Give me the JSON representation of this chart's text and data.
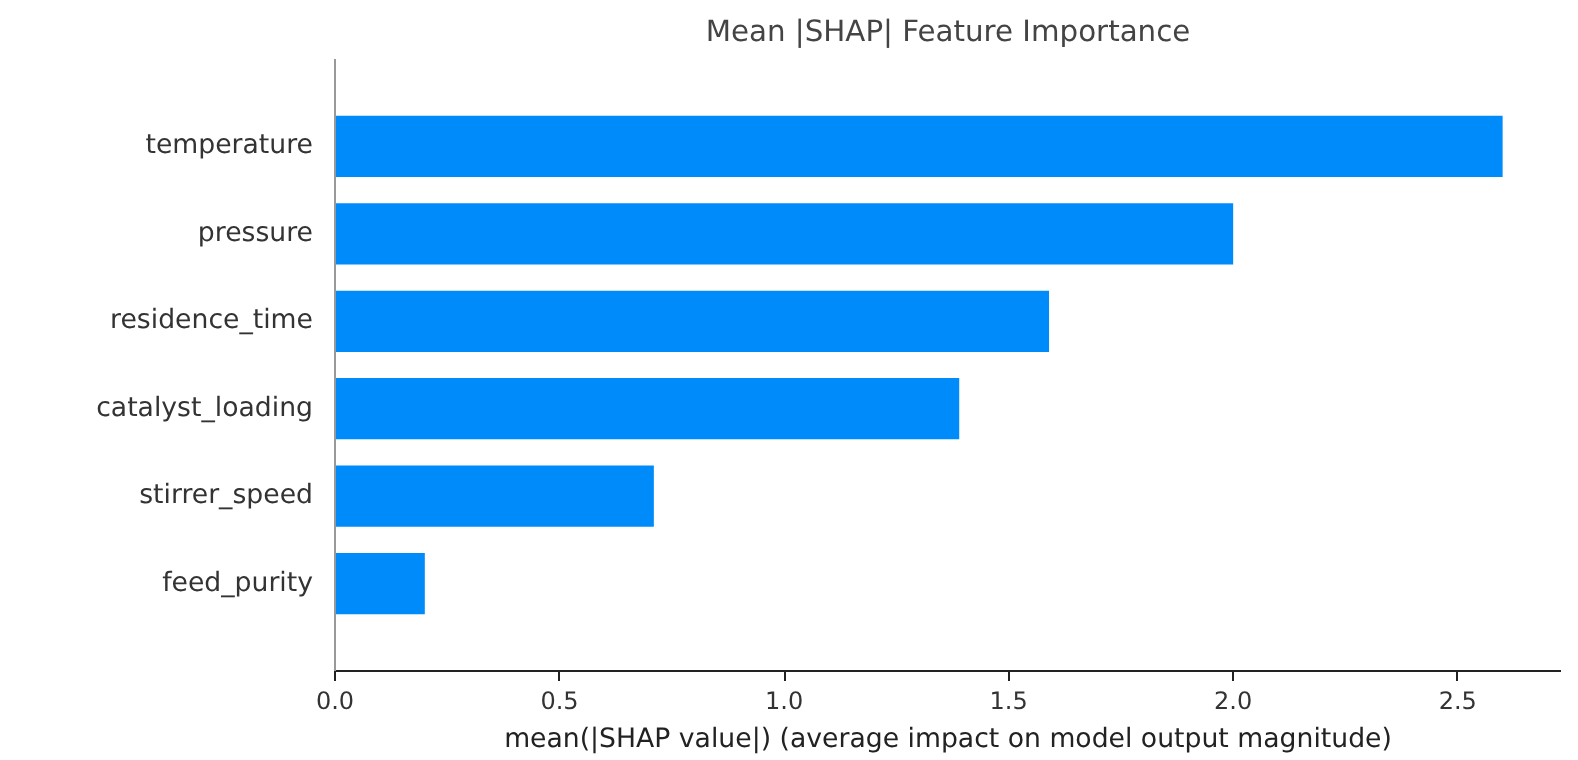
{
  "chart_data": {
    "type": "bar",
    "orientation": "horizontal",
    "title": "Mean |SHAP| Feature Importance",
    "xlabel": "mean(|SHAP value|) (average impact on model output magnitude)",
    "categories": [
      "temperature",
      "pressure",
      "residence_time",
      "catalyst_loading",
      "stirrer_speed",
      "feed_purity"
    ],
    "values": [
      2.6,
      2.0,
      1.59,
      1.39,
      0.71,
      0.2
    ],
    "color": "#008bfb",
    "xlim": [
      0,
      2.73
    ],
    "xticks": [
      {
        "value": 0,
        "label": "0.0"
      },
      0.5,
      {
        "value": 1,
        "label": "1.0"
      },
      1.5,
      {
        "value": 2,
        "label": "2.0"
      },
      2.5
    ],
    "grid": false
  }
}
